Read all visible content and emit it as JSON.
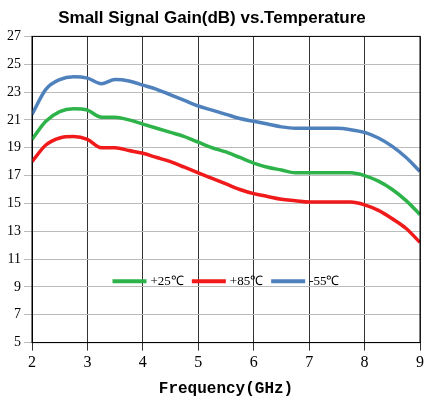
{
  "chart_data": {
    "type": "line",
    "title": "Small Signal Gain(dB) vs.Temperature",
    "x_label": "Frequency(GHz)",
    "x": [
      2.0,
      2.25,
      2.5,
      2.75,
      3.0,
      3.25,
      3.5,
      3.75,
      4.0,
      4.25,
      4.5,
      4.75,
      5.0,
      5.25,
      5.5,
      5.75,
      6.0,
      6.25,
      6.5,
      6.75,
      7.0,
      7.25,
      7.5,
      7.75,
      8.0,
      8.25,
      8.5,
      8.75,
      9.0
    ],
    "series": [
      {
        "name": "+25℃",
        "color": "#2db34a",
        "values": [
          19.6,
          20.9,
          21.6,
          21.8,
          21.7,
          21.2,
          21.2,
          21.0,
          20.7,
          20.4,
          20.1,
          19.8,
          19.4,
          19.0,
          18.7,
          18.3,
          17.9,
          17.6,
          17.4,
          17.2,
          17.2,
          17.2,
          17.2,
          17.2,
          17.0,
          16.6,
          16.0,
          15.2,
          14.2
        ]
      },
      {
        "name": "+85℃",
        "color": "#f01a1a",
        "values": [
          18.0,
          19.2,
          19.7,
          19.8,
          19.6,
          19.0,
          19.0,
          18.8,
          18.6,
          18.3,
          18.0,
          17.6,
          17.2,
          16.8,
          16.4,
          16.0,
          15.7,
          15.5,
          15.3,
          15.2,
          15.1,
          15.1,
          15.1,
          15.1,
          14.9,
          14.5,
          13.9,
          13.2,
          12.2
        ]
      },
      {
        "name": "-55℃",
        "color": "#4f81bd",
        "values": [
          21.4,
          23.2,
          23.9,
          24.1,
          24.0,
          23.6,
          23.9,
          23.8,
          23.5,
          23.2,
          22.8,
          22.4,
          22.0,
          21.7,
          21.4,
          21.1,
          20.9,
          20.7,
          20.5,
          20.4,
          20.4,
          20.4,
          20.4,
          20.3,
          20.1,
          19.7,
          19.1,
          18.3,
          17.3
        ]
      }
    ],
    "xlim": [
      2,
      9
    ],
    "xticks": [
      2,
      3,
      4,
      5,
      6,
      7,
      8,
      9
    ],
    "ylim": [
      5,
      27
    ],
    "yticks": [
      5,
      7,
      9,
      11,
      13,
      15,
      17,
      19,
      21,
      23,
      25,
      27
    ],
    "grid": true,
    "legend": "lower center"
  }
}
